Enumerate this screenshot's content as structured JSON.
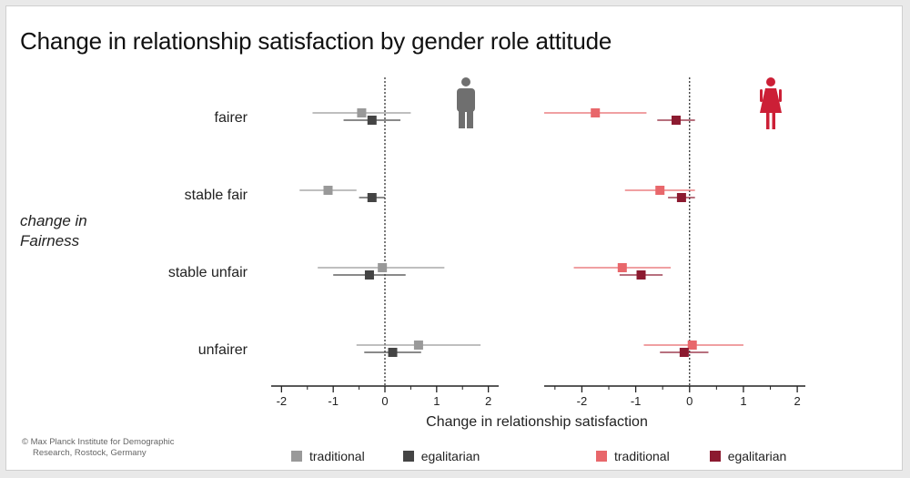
{
  "title": "Change in relationship satisfaction by gender role attitude",
  "ylabel_line1": "change in",
  "ylabel_line2": "Fairness",
  "xlabel": "Change in relationship satisfaction",
  "credit_line1": "© Max Planck Institute for Demographic",
  "credit_line2": "Research, Rostock, Germany",
  "legend_men": [
    {
      "label": "traditional",
      "color": "#999999"
    },
    {
      "label": "egalitarian",
      "color": "#444444"
    }
  ],
  "legend_women": [
    {
      "label": "traditional",
      "color": "#e8676b"
    },
    {
      "label": "egalitarian",
      "color": "#8c1a30"
    }
  ],
  "chart_data": [
    {
      "type": "scatter",
      "panel": "men",
      "icon": "man-icon",
      "categories": [
        "fairer",
        "stable fair",
        "stable unfair",
        "unfairer"
      ],
      "xlim": [
        -2.2,
        2.2
      ],
      "xticks": [
        -2,
        -1,
        0,
        1,
        2
      ],
      "reference_line": 0,
      "series": [
        {
          "name": "traditional",
          "color": "#999999",
          "points": [
            {
              "category": "fairer",
              "x": -0.45,
              "lo": -1.4,
              "hi": 0.5
            },
            {
              "category": "stable fair",
              "x": -1.1,
              "lo": -1.65,
              "hi": -0.55
            },
            {
              "category": "stable unfair",
              "x": -0.05,
              "lo": -1.3,
              "hi": 1.15
            },
            {
              "category": "unfairer",
              "x": 0.65,
              "lo": -0.55,
              "hi": 1.85
            }
          ]
        },
        {
          "name": "egalitarian",
          "color": "#444444",
          "points": [
            {
              "category": "fairer",
              "x": -0.25,
              "lo": -0.8,
              "hi": 0.3
            },
            {
              "category": "stable fair",
              "x": -0.25,
              "lo": -0.5,
              "hi": 0.0
            },
            {
              "category": "stable unfair",
              "x": -0.3,
              "lo": -1.0,
              "hi": 0.4
            },
            {
              "category": "unfairer",
              "x": 0.15,
              "lo": -0.4,
              "hi": 0.7
            }
          ]
        }
      ]
    },
    {
      "type": "scatter",
      "panel": "women",
      "icon": "woman-icon",
      "categories": [
        "fairer",
        "stable fair",
        "stable unfair",
        "unfairer"
      ],
      "xlim": [
        -2.7,
        2.15
      ],
      "xticks": [
        -2,
        -1,
        0,
        1,
        2
      ],
      "reference_line": 0,
      "series": [
        {
          "name": "traditional",
          "color": "#e8676b",
          "points": [
            {
              "category": "fairer",
              "x": -1.75,
              "lo": -2.7,
              "hi": -0.8
            },
            {
              "category": "stable fair",
              "x": -0.55,
              "lo": -1.2,
              "hi": 0.1
            },
            {
              "category": "stable unfair",
              "x": -1.25,
              "lo": -2.15,
              "hi": -0.35
            },
            {
              "category": "unfairer",
              "x": 0.05,
              "lo": -0.85,
              "hi": 1.0
            }
          ]
        },
        {
          "name": "egalitarian",
          "color": "#8c1a30",
          "points": [
            {
              "category": "fairer",
              "x": -0.25,
              "lo": -0.6,
              "hi": 0.1
            },
            {
              "category": "stable fair",
              "x": -0.15,
              "lo": -0.4,
              "hi": 0.1
            },
            {
              "category": "stable unfair",
              "x": -0.9,
              "lo": -1.3,
              "hi": -0.5
            },
            {
              "category": "unfairer",
              "x": -0.1,
              "lo": -0.55,
              "hi": 0.35
            }
          ]
        }
      ]
    }
  ]
}
